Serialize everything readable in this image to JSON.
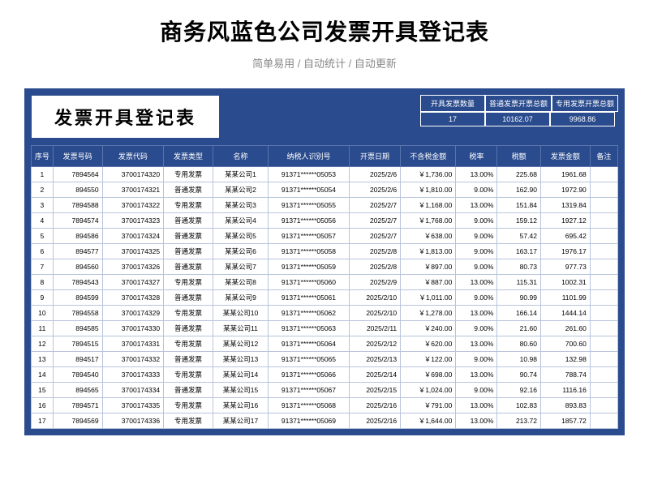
{
  "page": {
    "title": "商务风蓝色公司发票开具登记表",
    "subtitle": "简单易用  /  自动统计  /  自动更新"
  },
  "sheet": {
    "title": "发票开具登记表",
    "theme": {
      "primary": "#2a4b8d",
      "border": "#b8c4dc",
      "headerBorder": "#5a74ad",
      "bg": "#ffffff"
    },
    "summary": {
      "headers": [
        "开具发票数量",
        "普通发票开票总额",
        "专用发票开票总额"
      ],
      "values": [
        "17",
        "10162.07",
        "9968.86"
      ]
    },
    "columns": [
      "序号",
      "发票号码",
      "发票代码",
      "发票类型",
      "名称",
      "纳税人识别号",
      "开票日期",
      "不含税金额",
      "税率",
      "税额",
      "发票金额",
      "备注"
    ],
    "rows": [
      {
        "seq": "1",
        "num": "7894564",
        "code": "3700174320",
        "type": "专用发票",
        "name": "某某公司1",
        "taxid": "91371******05053",
        "date": "2025/2/6",
        "amount": "￥1,736.00",
        "rate": "13.00%",
        "taxamt": "225.68",
        "total": "1961.68",
        "note": ""
      },
      {
        "seq": "2",
        "num": "894550",
        "code": "3700174321",
        "type": "普通发票",
        "name": "某某公司2",
        "taxid": "91371******05054",
        "date": "2025/2/6",
        "amount": "￥1,810.00",
        "rate": "9.00%",
        "taxamt": "162.90",
        "total": "1972.90",
        "note": ""
      },
      {
        "seq": "3",
        "num": "7894588",
        "code": "3700174322",
        "type": "专用发票",
        "name": "某某公司3",
        "taxid": "91371******05055",
        "date": "2025/2/7",
        "amount": "￥1,168.00",
        "rate": "13.00%",
        "taxamt": "151.84",
        "total": "1319.84",
        "note": ""
      },
      {
        "seq": "4",
        "num": "7894574",
        "code": "3700174323",
        "type": "普通发票",
        "name": "某某公司4",
        "taxid": "91371******05056",
        "date": "2025/2/7",
        "amount": "￥1,768.00",
        "rate": "9.00%",
        "taxamt": "159.12",
        "total": "1927.12",
        "note": ""
      },
      {
        "seq": "5",
        "num": "894586",
        "code": "3700174324",
        "type": "普通发票",
        "name": "某某公司5",
        "taxid": "91371******05057",
        "date": "2025/2/7",
        "amount": "￥638.00",
        "rate": "9.00%",
        "taxamt": "57.42",
        "total": "695.42",
        "note": ""
      },
      {
        "seq": "6",
        "num": "894577",
        "code": "3700174325",
        "type": "普通发票",
        "name": "某某公司6",
        "taxid": "91371******05058",
        "date": "2025/2/8",
        "amount": "￥1,813.00",
        "rate": "9.00%",
        "taxamt": "163.17",
        "total": "1976.17",
        "note": ""
      },
      {
        "seq": "7",
        "num": "894560",
        "code": "3700174326",
        "type": "普通发票",
        "name": "某某公司7",
        "taxid": "91371******05059",
        "date": "2025/2/8",
        "amount": "￥897.00",
        "rate": "9.00%",
        "taxamt": "80.73",
        "total": "977.73",
        "note": ""
      },
      {
        "seq": "8",
        "num": "7894543",
        "code": "3700174327",
        "type": "专用发票",
        "name": "某某公司8",
        "taxid": "91371******05060",
        "date": "2025/2/9",
        "amount": "￥887.00",
        "rate": "13.00%",
        "taxamt": "115.31",
        "total": "1002.31",
        "note": ""
      },
      {
        "seq": "9",
        "num": "894599",
        "code": "3700174328",
        "type": "普通发票",
        "name": "某某公司9",
        "taxid": "91371******05061",
        "date": "2025/2/10",
        "amount": "￥1,011.00",
        "rate": "9.00%",
        "taxamt": "90.99",
        "total": "1101.99",
        "note": ""
      },
      {
        "seq": "10",
        "num": "7894558",
        "code": "3700174329",
        "type": "专用发票",
        "name": "某某公司10",
        "taxid": "91371******05062",
        "date": "2025/2/10",
        "amount": "￥1,278.00",
        "rate": "13.00%",
        "taxamt": "166.14",
        "total": "1444.14",
        "note": ""
      },
      {
        "seq": "11",
        "num": "894585",
        "code": "3700174330",
        "type": "普通发票",
        "name": "某某公司11",
        "taxid": "91371******05063",
        "date": "2025/2/11",
        "amount": "￥240.00",
        "rate": "9.00%",
        "taxamt": "21.60",
        "total": "261.60",
        "note": ""
      },
      {
        "seq": "12",
        "num": "7894515",
        "code": "3700174331",
        "type": "专用发票",
        "name": "某某公司12",
        "taxid": "91371******05064",
        "date": "2025/2/12",
        "amount": "￥620.00",
        "rate": "13.00%",
        "taxamt": "80.60",
        "total": "700.60",
        "note": ""
      },
      {
        "seq": "13",
        "num": "894517",
        "code": "3700174332",
        "type": "普通发票",
        "name": "某某公司13",
        "taxid": "91371******05065",
        "date": "2025/2/13",
        "amount": "￥122.00",
        "rate": "9.00%",
        "taxamt": "10.98",
        "total": "132.98",
        "note": ""
      },
      {
        "seq": "14",
        "num": "7894540",
        "code": "3700174333",
        "type": "专用发票",
        "name": "某某公司14",
        "taxid": "91371******05066",
        "date": "2025/2/14",
        "amount": "￥698.00",
        "rate": "13.00%",
        "taxamt": "90.74",
        "total": "788.74",
        "note": ""
      },
      {
        "seq": "15",
        "num": "894565",
        "code": "3700174334",
        "type": "普通发票",
        "name": "某某公司15",
        "taxid": "91371******05067",
        "date": "2025/2/15",
        "amount": "￥1,024.00",
        "rate": "9.00%",
        "taxamt": "92.16",
        "total": "1116.16",
        "note": ""
      },
      {
        "seq": "16",
        "num": "7894571",
        "code": "3700174335",
        "type": "专用发票",
        "name": "某某公司16",
        "taxid": "91371******05068",
        "date": "2025/2/16",
        "amount": "￥791.00",
        "rate": "13.00%",
        "taxamt": "102.83",
        "total": "893.83",
        "note": ""
      },
      {
        "seq": "17",
        "num": "7894569",
        "code": "3700174336",
        "type": "专用发票",
        "name": "某某公司17",
        "taxid": "91371******05069",
        "date": "2025/2/16",
        "amount": "￥1,644.00",
        "rate": "13.00%",
        "taxamt": "213.72",
        "total": "1857.72",
        "note": ""
      }
    ]
  }
}
